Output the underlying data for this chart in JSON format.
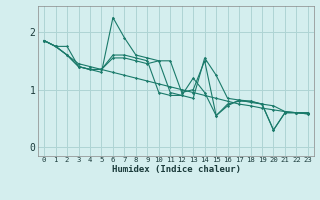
{
  "xlabel": "Humidex (Indice chaleur)",
  "bg_color": "#d4eeee",
  "grid_color": "#aed4d4",
  "line_color": "#1a7a6a",
  "spine_color": "#888888",
  "xlim": [
    -0.5,
    23.5
  ],
  "ylim": [
    -0.15,
    2.45
  ],
  "yticks": [
    0,
    1,
    2
  ],
  "xticks": [
    0,
    1,
    2,
    3,
    4,
    5,
    6,
    7,
    8,
    9,
    10,
    11,
    12,
    13,
    14,
    15,
    16,
    17,
    18,
    19,
    20,
    21,
    22,
    23
  ],
  "series": [
    [
      1.85,
      1.75,
      1.75,
      1.4,
      1.35,
      1.3,
      2.25,
      1.9,
      1.6,
      1.55,
      1.5,
      1.5,
      0.95,
      1.0,
      1.5,
      0.55,
      0.75,
      0.8,
      0.8,
      0.75,
      0.3,
      0.6,
      0.6,
      0.6
    ],
    [
      1.85,
      1.75,
      1.6,
      1.45,
      1.4,
      1.35,
      1.3,
      1.25,
      1.2,
      1.15,
      1.1,
      1.05,
      1.0,
      0.95,
      0.9,
      0.85,
      0.8,
      0.75,
      0.72,
      0.68,
      0.65,
      0.62,
      0.6,
      0.58
    ],
    [
      1.85,
      1.75,
      1.6,
      1.4,
      1.35,
      1.35,
      1.55,
      1.55,
      1.5,
      1.45,
      1.5,
      0.95,
      0.9,
      0.85,
      1.55,
      1.25,
      0.85,
      0.82,
      0.78,
      0.75,
      0.72,
      0.62,
      0.6,
      0.58
    ],
    [
      1.85,
      1.75,
      1.6,
      1.4,
      1.35,
      1.35,
      1.6,
      1.6,
      1.55,
      1.5,
      0.95,
      0.9,
      0.9,
      1.2,
      0.95,
      0.55,
      0.72,
      0.82,
      0.8,
      0.75,
      0.3,
      0.6,
      0.6,
      0.6
    ]
  ],
  "xlabel_fontsize": 6.5,
  "ytick_fontsize": 7.0,
  "xtick_fontsize": 5.2
}
